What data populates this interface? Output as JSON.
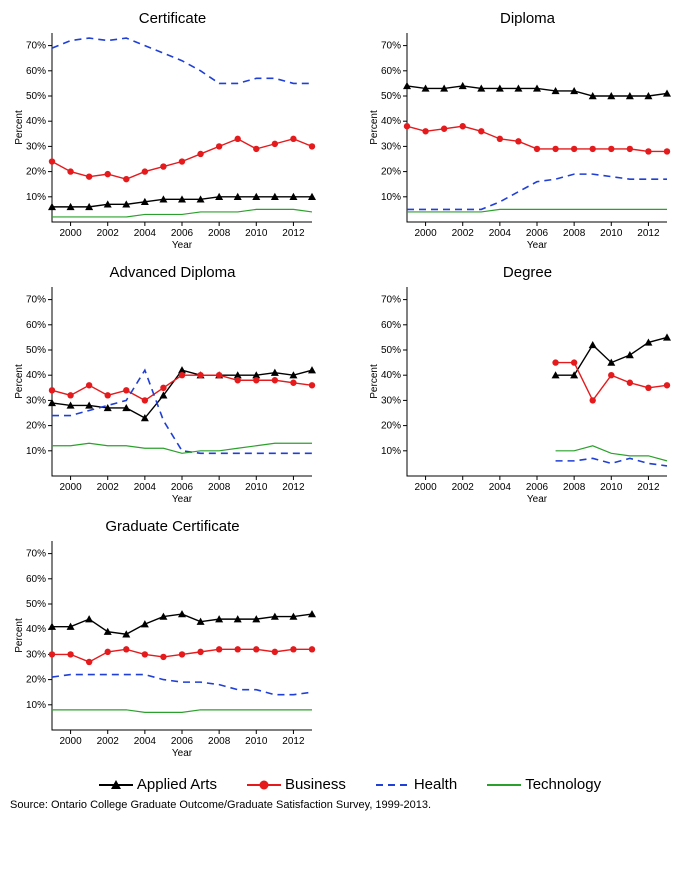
{
  "years": [
    1999,
    2000,
    2001,
    2002,
    2003,
    2004,
    2005,
    2006,
    2007,
    2008,
    2009,
    2010,
    2011,
    2012,
    2013
  ],
  "ylim": [
    0,
    75
  ],
  "yticks": [
    10,
    20,
    30,
    40,
    50,
    60,
    70
  ],
  "xticks": [
    2000,
    2002,
    2004,
    2006,
    2008,
    2010,
    2012
  ],
  "axis_label_y": "Percent",
  "axis_label_x": "Year",
  "tick_fontsize": 10,
  "label_fontsize": 10,
  "title_fontsize": 15,
  "colors": {
    "applied_arts": "#000000",
    "business": "#e41a1c",
    "health": "#1f3fd6",
    "technology": "#2ca02c",
    "axis": "#000000",
    "background": "#ffffff"
  },
  "series_style": {
    "applied_arts": {
      "label": "Applied Arts",
      "marker": "triangle",
      "dash": null,
      "width": 1.4
    },
    "business": {
      "label": "Business",
      "marker": "circle",
      "dash": null,
      "width": 1.4
    },
    "health": {
      "label": "Health",
      "marker": null,
      "dash": "7,5",
      "width": 1.6
    },
    "technology": {
      "label": "Technology",
      "marker": null,
      "dash": null,
      "width": 1.2
    }
  },
  "panels": [
    {
      "title": "Certificate",
      "series": {
        "applied_arts": [
          6,
          6,
          6,
          7,
          7,
          8,
          9,
          9,
          9,
          10,
          10,
          10,
          10,
          10,
          10
        ],
        "business": [
          24,
          20,
          18,
          19,
          17,
          20,
          22,
          24,
          27,
          30,
          33,
          29,
          31,
          33,
          30
        ],
        "health": [
          69,
          72,
          73,
          72,
          73,
          70,
          67,
          64,
          60,
          55,
          55,
          57,
          57,
          55,
          55
        ],
        "technology": [
          2,
          2,
          2,
          2,
          2,
          3,
          3,
          3,
          4,
          4,
          4,
          5,
          5,
          5,
          4
        ]
      }
    },
    {
      "title": "Diploma",
      "series": {
        "applied_arts": [
          54,
          53,
          53,
          54,
          53,
          53,
          53,
          53,
          52,
          52,
          50,
          50,
          50,
          50,
          51
        ],
        "business": [
          38,
          36,
          37,
          38,
          36,
          33,
          32,
          29,
          29,
          29,
          29,
          29,
          29,
          28,
          28
        ],
        "health": [
          5,
          5,
          5,
          5,
          5,
          8,
          12,
          16,
          17,
          19,
          19,
          18,
          17,
          17,
          17
        ],
        "technology": [
          4,
          4,
          4,
          4,
          4,
          5,
          5,
          5,
          5,
          5,
          5,
          5,
          5,
          5,
          5
        ]
      }
    },
    {
      "title": "Advanced Diploma",
      "series": {
        "applied_arts": [
          29,
          28,
          28,
          27,
          27,
          23,
          32,
          42,
          40,
          40,
          40,
          40,
          41,
          40,
          42
        ],
        "business": [
          34,
          32,
          36,
          32,
          34,
          30,
          35,
          40,
          40,
          40,
          38,
          38,
          38,
          37,
          36
        ],
        "health": [
          24,
          24,
          26,
          28,
          30,
          42,
          22,
          10,
          9,
          9,
          9,
          9,
          9,
          9,
          9
        ],
        "technology": [
          12,
          12,
          13,
          12,
          12,
          11,
          11,
          9,
          10,
          10,
          11,
          12,
          13,
          13,
          13
        ]
      }
    },
    {
      "title": "Degree",
      "series": {
        "applied_arts": [
          null,
          null,
          null,
          null,
          null,
          null,
          null,
          null,
          40,
          40,
          52,
          45,
          48,
          53,
          55
        ],
        "business": [
          null,
          null,
          null,
          null,
          null,
          null,
          null,
          null,
          45,
          45,
          30,
          40,
          37,
          35,
          36
        ],
        "health": [
          null,
          null,
          null,
          null,
          null,
          null,
          null,
          null,
          6,
          6,
          7,
          5,
          7,
          5,
          4
        ],
        "technology": [
          null,
          null,
          null,
          null,
          null,
          null,
          null,
          null,
          10,
          10,
          12,
          9,
          8,
          8,
          6
        ]
      }
    },
    {
      "title": "Graduate Certificate",
      "series": {
        "applied_arts": [
          41,
          41,
          44,
          39,
          38,
          42,
          45,
          46,
          43,
          44,
          44,
          44,
          45,
          45,
          46
        ],
        "business": [
          30,
          30,
          27,
          31,
          32,
          30,
          29,
          30,
          31,
          32,
          32,
          32,
          31,
          32,
          32
        ],
        "health": [
          21,
          22,
          22,
          22,
          22,
          22,
          20,
          19,
          19,
          18,
          16,
          16,
          14,
          14,
          15
        ],
        "technology": [
          8,
          8,
          8,
          8,
          8,
          7,
          7,
          7,
          8,
          8,
          8,
          8,
          8,
          8,
          8
        ]
      }
    }
  ],
  "source_text": "Source: Ontario College Graduate Outcome/Graduate Satisfaction Survey, 1999-2013."
}
